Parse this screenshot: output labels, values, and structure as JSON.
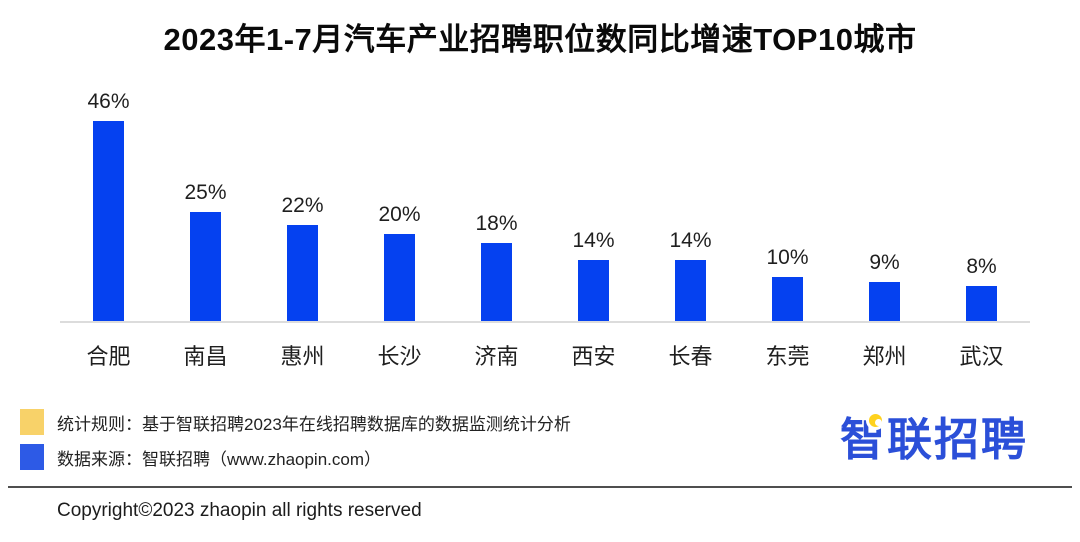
{
  "chart_data": {
    "type": "bar",
    "title": "2023年1-7月汽车产业招聘职位数同比增速TOP10城市",
    "categories": [
      "合肥",
      "南昌",
      "惠州",
      "长沙",
      "济南",
      "西安",
      "长春",
      "东莞",
      "郑州",
      "武汉"
    ],
    "values": [
      46,
      25,
      22,
      20,
      18,
      14,
      14,
      10,
      9,
      8
    ],
    "value_labels": [
      "46%",
      "25%",
      "22%",
      "20%",
      "18%",
      "14%",
      "14%",
      "10%",
      "9%",
      "8%"
    ],
    "xlabel": "",
    "ylabel": "",
    "ylim": [
      0,
      50
    ],
    "grid": false,
    "legend_position": "none",
    "bar_color": "#0541f0",
    "baseline_color": "#dcdcdc",
    "data_label_position": "above bars"
  },
  "footer": {
    "notes": [
      {
        "icon": "yellow-swatch",
        "color": "#f8d269",
        "text": "统计规则：基于智联招聘2023年在线招聘数据库的数据监测统计分析"
      },
      {
        "icon": "blue-swatch",
        "color": "#2d5ae6",
        "text": "数据来源：智联招聘（www.zhaopin.com）"
      }
    ],
    "copyright": "Copyright©2023 zhaopin all rights reserved"
  },
  "logo": {
    "text": "智联招聘",
    "text_color": "#2b4fd8",
    "pin_color": "#ffd21e"
  }
}
